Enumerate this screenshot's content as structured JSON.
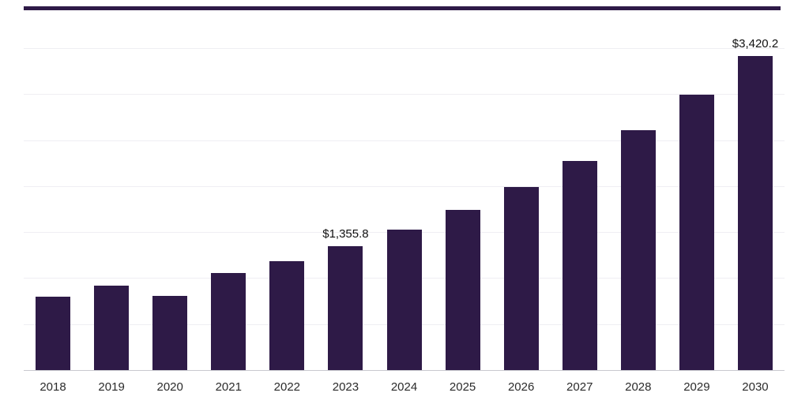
{
  "colors": {
    "bar": "#2E1A47",
    "top_strip": "#2E1A47",
    "gridline": "#efeef3",
    "axis_line": "#c9c9cf",
    "data_label": "#111111",
    "tick_label": "#2b2b2b",
    "background": "#ffffff"
  },
  "chart_data": {
    "type": "bar",
    "title": "",
    "xlabel": "",
    "ylabel": "",
    "categories": [
      "2018",
      "2019",
      "2020",
      "2021",
      "2022",
      "2023",
      "2024",
      "2025",
      "2026",
      "2027",
      "2028",
      "2029",
      "2030"
    ],
    "values": [
      810,
      925,
      815,
      1060,
      1195,
      1355.8,
      1535,
      1750,
      2000,
      2280,
      2620,
      3000,
      3420.2
    ],
    "labeled_points": [
      {
        "category": "2023",
        "label": "$1,355.8"
      },
      {
        "category": "2030",
        "label": "$3,420.2"
      }
    ],
    "ylim": [
      0,
      3500
    ],
    "gridline_step": 500,
    "grid": true,
    "legend": false,
    "y_axis_labels_visible": false
  }
}
